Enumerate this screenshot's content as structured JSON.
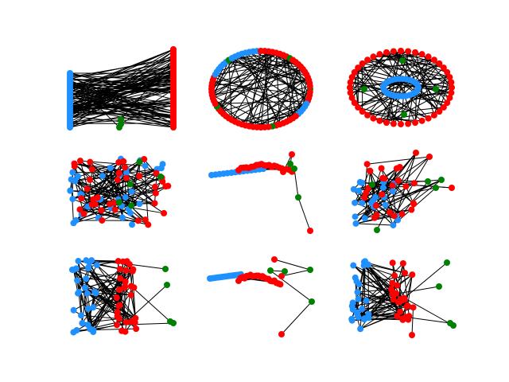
{
  "figure": {
    "node_colors": {
      "blue": "#1e90ff",
      "red": "#ff0000",
      "green": "#008000"
    },
    "edge_color": "#000000",
    "layouts": [
      {
        "name": "bipartite"
      },
      {
        "name": "circular"
      },
      {
        "name": "shell"
      },
      {
        "name": "random"
      },
      {
        "name": "spectral"
      },
      {
        "name": "spring"
      },
      {
        "name": "random-2"
      },
      {
        "name": "spectral-2"
      },
      {
        "name": "spring-2"
      }
    ]
  }
}
